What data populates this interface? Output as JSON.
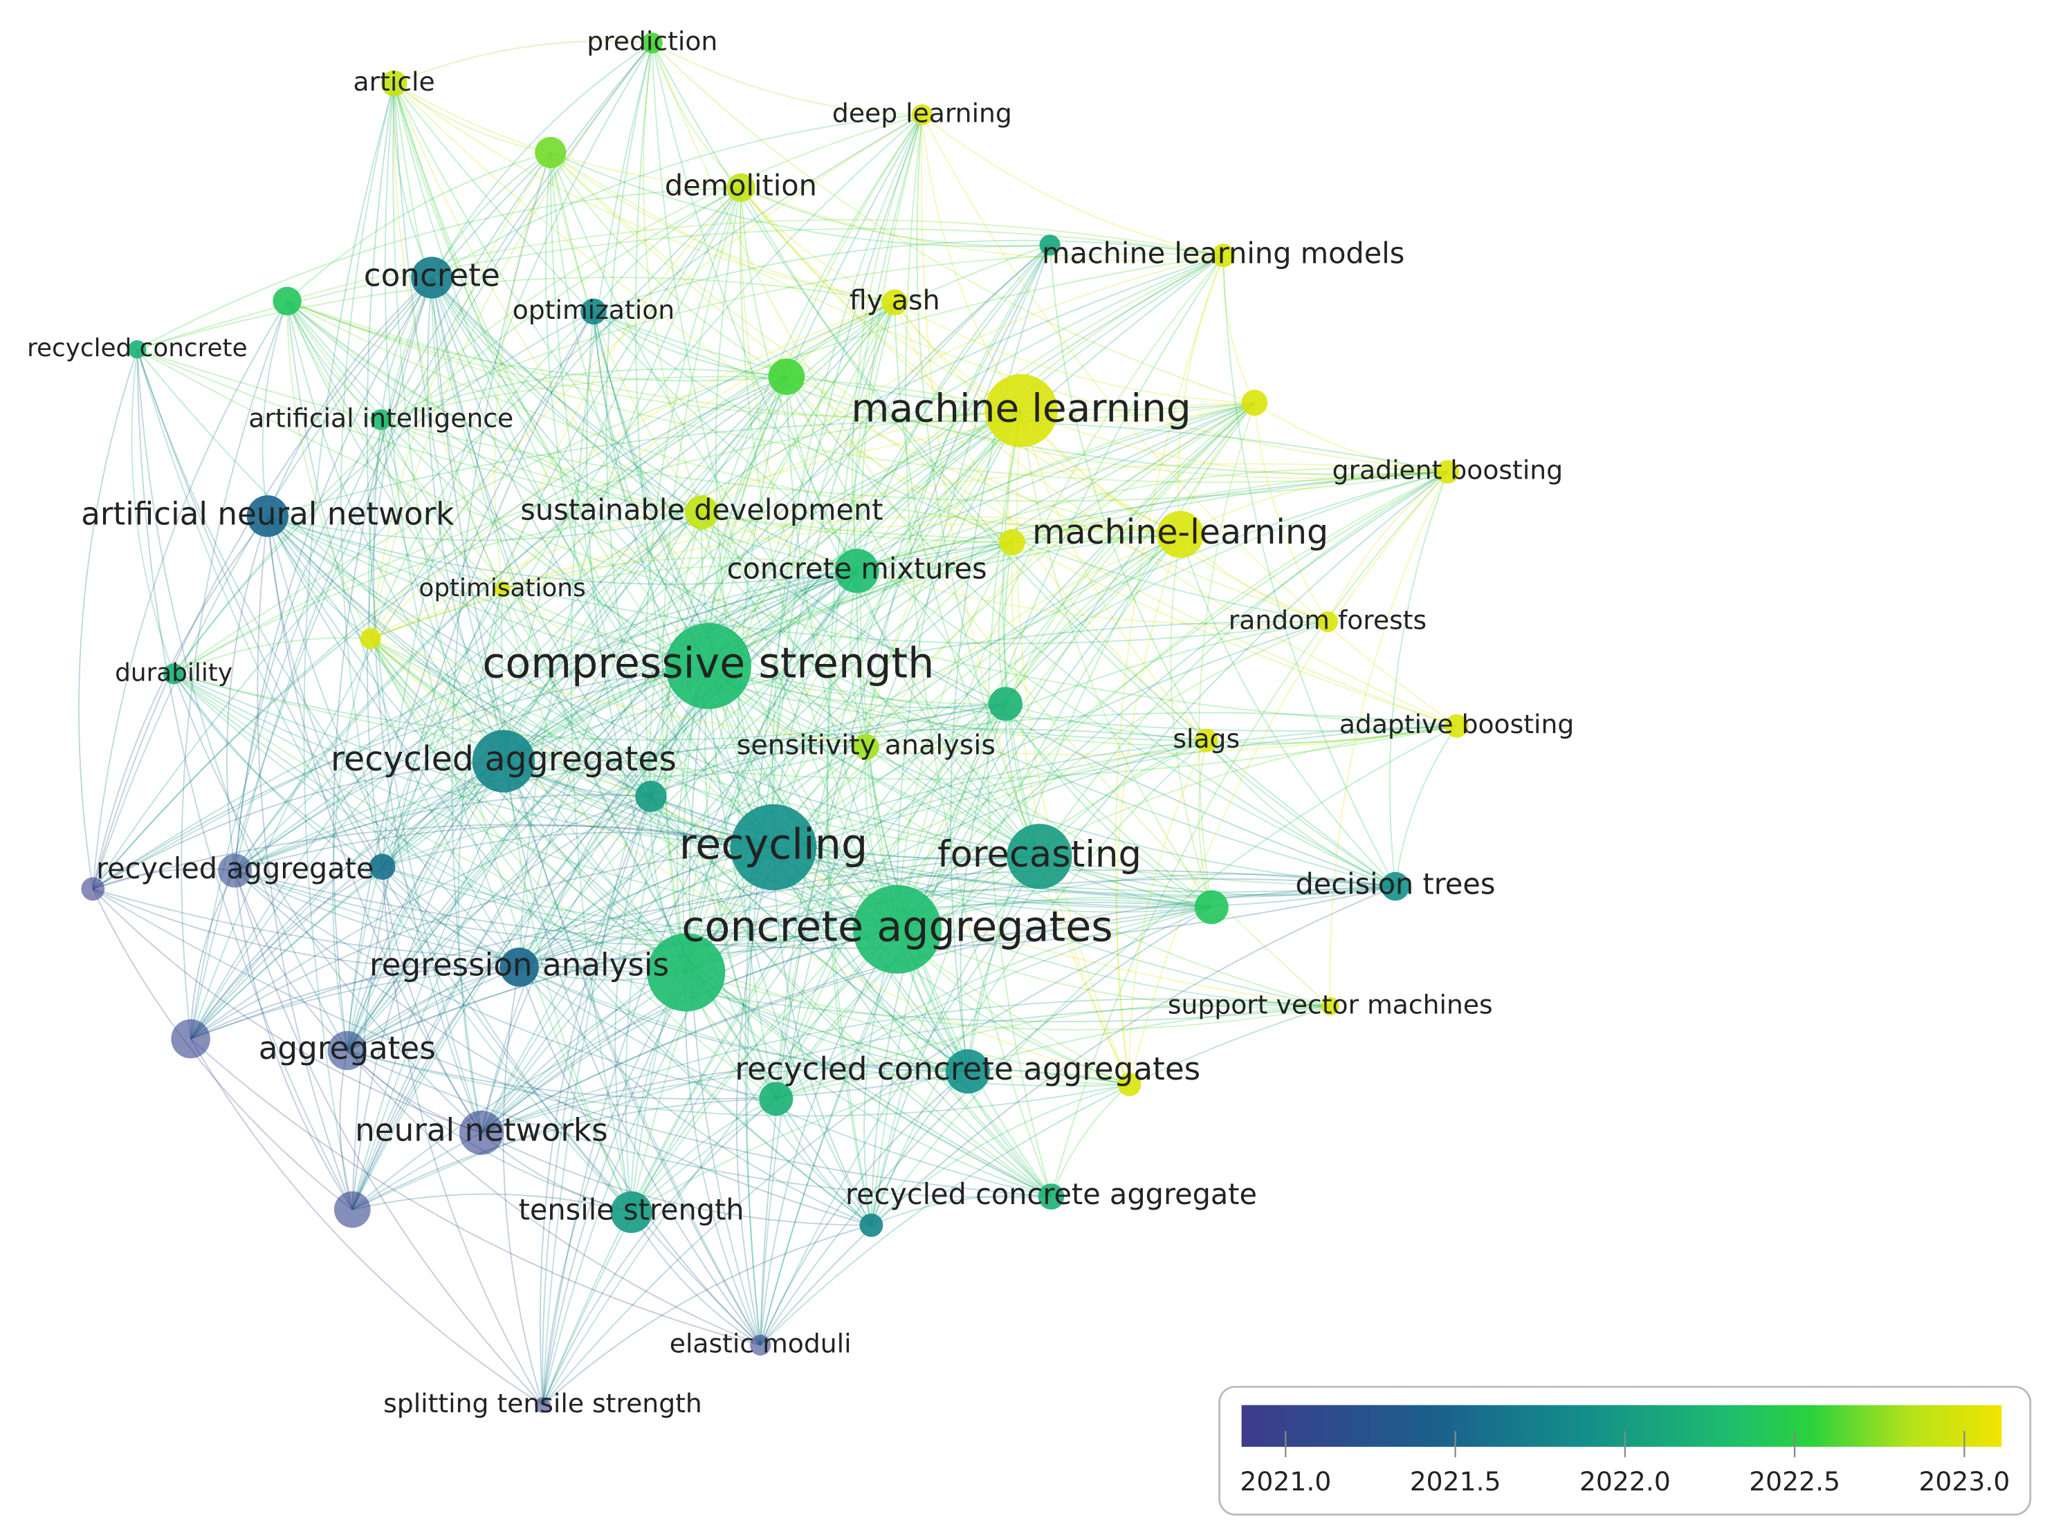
{
  "nodes": [
    {
      "label": "prediction",
      "year": 2022.6
    },
    {
      "label": "article",
      "year": 2022.9
    },
    {
      "label": null,
      "year": 2022.7
    },
    {
      "label": "deep learning",
      "year": 2023.0
    },
    {
      "label": "demolition",
      "year": 2022.9
    },
    {
      "label": null,
      "year": 2022.1
    },
    {
      "label": "machine learning models",
      "year": 2023.0
    },
    {
      "label": "concrete",
      "year": 2021.7
    },
    {
      "label": null,
      "year": 2022.4
    },
    {
      "label": "optimization",
      "year": 2021.8
    },
    {
      "label": "fly ash",
      "year": 2023.0
    },
    {
      "label": "recycled concrete",
      "year": 2022.2
    },
    {
      "label": null,
      "year": 2022.6
    },
    {
      "label": "machine learning",
      "year": 2023.0
    },
    {
      "label": null,
      "year": 2023.0
    },
    {
      "label": "artificial intelligence",
      "year": 2022.3
    },
    {
      "label": "gradient boosting",
      "year": 2023.0
    },
    {
      "label": "artificial neural network",
      "year": 2021.5
    },
    {
      "label": "sustainable development",
      "year": 2022.9
    },
    {
      "label": "machine-learning",
      "year": 2023.0
    },
    {
      "label": null,
      "year": 2023.0
    },
    {
      "label": "concrete mixtures",
      "year": 2022.3
    },
    {
      "label": "optimisations",
      "year": 2023.0
    },
    {
      "label": null,
      "year": 2023.0
    },
    {
      "label": "random forests",
      "year": 2023.0
    },
    {
      "label": "durability",
      "year": 2022.2
    },
    {
      "label": "compressive strength",
      "year": 2022.3
    },
    {
      "label": null,
      "year": 2022.2
    },
    {
      "label": "recycled aggregates",
      "year": 2021.8
    },
    {
      "label": "sensitivity analysis",
      "year": 2022.8
    },
    {
      "label": "slags",
      "year": 2023.0
    },
    {
      "label": "adaptive boosting",
      "year": 2023.0
    },
    {
      "label": null,
      "year": 2022.0
    },
    {
      "label": "recycling",
      "year": 2021.9
    },
    {
      "label": "forecasting",
      "year": 2022.0
    },
    {
      "label": "recycled aggregate",
      "year": 2021.1
    },
    {
      "label": null,
      "year": 2021.6
    },
    {
      "label": null,
      "year": 2020.9
    },
    {
      "label": "decision trees",
      "year": 2021.9
    },
    {
      "label": null,
      "year": 2022.4
    },
    {
      "label": "concrete aggregates",
      "year": 2022.3
    },
    {
      "label": "regression analysis",
      "year": 2021.5
    },
    {
      "label": null,
      "year": 2022.3
    },
    {
      "label": "support vector machines",
      "year": 2023.0
    },
    {
      "label": null,
      "year": 2021.0
    },
    {
      "label": "aggregates",
      "year": 2021.1
    },
    {
      "label": "recycled concrete aggregates",
      "year": 2021.9
    },
    {
      "label": null,
      "year": 2023.0
    },
    {
      "label": null,
      "year": 2022.2
    },
    {
      "label": "neural networks",
      "year": 2021.0
    },
    {
      "label": "tensile strength",
      "year": 2022.0
    },
    {
      "label": null,
      "year": 2021.0
    },
    {
      "label": "recycled concrete aggregate",
      "year": 2022.2
    },
    {
      "label": null,
      "year": 2021.8
    },
    {
      "label": "elastic moduli",
      "year": 2021.0
    },
    {
      "label": "splitting tensile strength",
      "year": 2021.0
    }
  ],
  "legend": {
    "range": [
      2020.87,
      2023.11
    ],
    "ticks": [
      {
        "value": 2021,
        "label": "2021.0"
      },
      {
        "value": 2021.5,
        "label": "2021.5"
      },
      {
        "value": 2022,
        "label": "2022.0"
      },
      {
        "value": 2022.5,
        "label": "2022.5"
      },
      {
        "value": 2023,
        "label": "2023.0"
      }
    ]
  }
}
